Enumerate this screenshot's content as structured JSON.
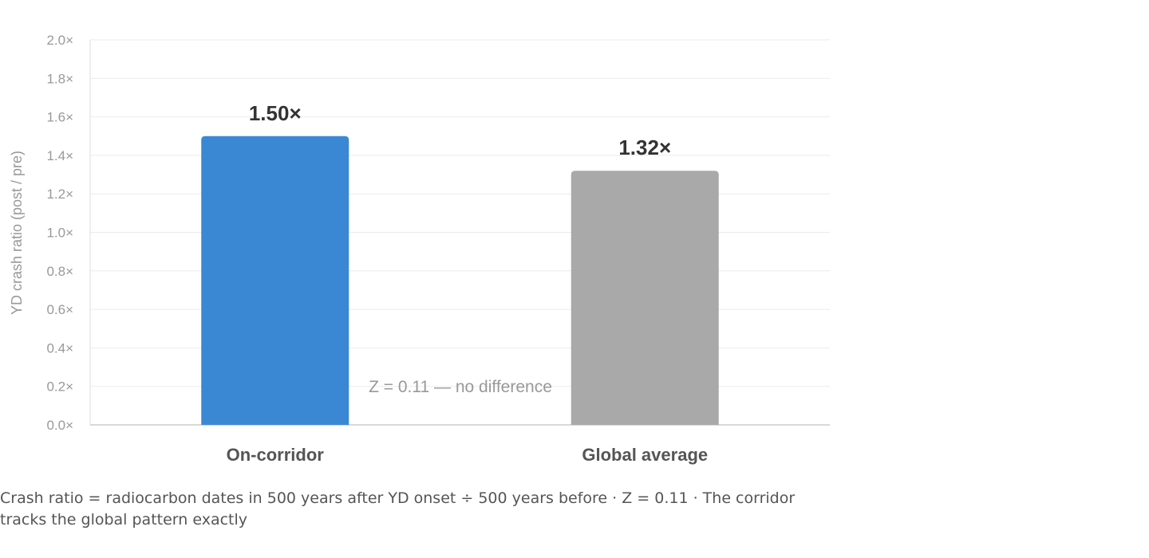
{
  "chart_data": {
    "type": "bar",
    "categories": [
      "On-corridor",
      "Global average"
    ],
    "values": [
      1.5,
      1.32
    ],
    "value_labels": [
      "1.50×",
      "1.32×"
    ],
    "colors": [
      "#3a88d4",
      "#a9a9a9"
    ],
    "ylabel": "YD crash ratio (post / pre)",
    "ylim": [
      0,
      2.0
    ],
    "yticks": [
      "0.0×",
      "0.2×",
      "0.4×",
      "0.6×",
      "0.8×",
      "1.0×",
      "1.2×",
      "1.4×",
      "1.6×",
      "1.8×",
      "2.0×"
    ],
    "annotation": "Z = 0.11 — no difference",
    "grid": true,
    "legend": "none"
  },
  "caption": "Crash ratio = radiocarbon dates in 500 years after YD onset ÷ 500 years before · Z = 0.11 · The corridor tracks the global pattern exactly"
}
